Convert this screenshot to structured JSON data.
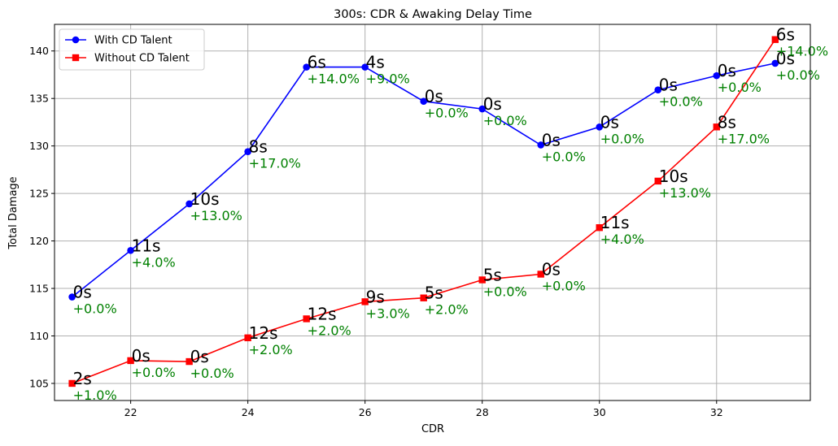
{
  "chart_data": {
    "type": "line",
    "title": "300s: CDR & Awaking Delay Time",
    "xlabel": "CDR",
    "ylabel": "Total Damage",
    "xlim": [
      20.7,
      33.6
    ],
    "ylim": [
      103.2,
      142.8
    ],
    "xticks": [
      22,
      24,
      26,
      28,
      30,
      32
    ],
    "yticks": [
      105,
      110,
      115,
      120,
      125,
      130,
      135,
      140
    ],
    "grid": true,
    "legend_position": "top-left",
    "x": [
      21,
      22,
      23,
      24,
      25,
      26,
      27,
      28,
      29,
      30,
      31,
      32,
      33
    ],
    "series": [
      {
        "name": "With CD Talent",
        "color": "#0000ff",
        "marker": "circle",
        "values": [
          114.1,
          119.0,
          123.9,
          129.4,
          138.3,
          138.3,
          134.7,
          133.9,
          130.1,
          132.0,
          135.9,
          137.4,
          138.7
        ],
        "delay_labels": [
          "0s",
          "11s",
          "10s",
          "8s",
          "6s",
          "4s",
          "0s",
          "0s",
          "0s",
          "0s",
          "0s",
          "0s",
          "0s"
        ],
        "pct_labels": [
          "+0.0%",
          "+4.0%",
          "+13.0%",
          "+17.0%",
          "+14.0%",
          "+9.0%",
          "+0.0%",
          "+0.0%",
          "+0.0%",
          "+0.0%",
          "+0.0%",
          "+0.0%",
          "+0.0%"
        ]
      },
      {
        "name": "Without CD Talent",
        "color": "#ff0000",
        "marker": "square",
        "values": [
          105.0,
          107.4,
          107.3,
          109.8,
          111.8,
          113.6,
          114.0,
          115.9,
          116.5,
          121.4,
          126.3,
          132.0,
          141.2
        ],
        "delay_labels": [
          "2s",
          "0s",
          "0s",
          "12s",
          "12s",
          "9s",
          "5s",
          "5s",
          "0s",
          "11s",
          "10s",
          "8s",
          "6s"
        ],
        "pct_labels": [
          "+1.0%",
          "+0.0%",
          "+0.0%",
          "+2.0%",
          "+2.0%",
          "+3.0%",
          "+2.0%",
          "+0.0%",
          "+0.0%",
          "+4.0%",
          "+13.0%",
          "+17.0%",
          "+14.0%"
        ]
      }
    ]
  }
}
